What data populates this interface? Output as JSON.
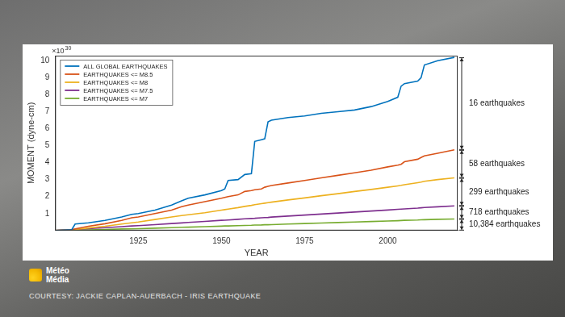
{
  "chart_data": {
    "type": "line",
    "x_label": "YEAR",
    "y_label": "MOMENT (dyne-cm)",
    "y_multiplier": {
      "text": "×10",
      "superscript": "30"
    },
    "x": [
      1900,
      1905,
      1906,
      1910,
      1915,
      1920,
      1923,
      1925,
      1930,
      1935,
      1938,
      1940,
      1945,
      1950,
      1951,
      1952,
      1955,
      1957,
      1959,
      1960,
      1962,
      1963,
      1964,
      1965,
      1970,
      1975,
      1980,
      1985,
      1990,
      1995,
      2000,
      2003,
      2004,
      2005,
      2009,
      2010,
      2011,
      2015,
      2020
    ],
    "series": [
      {
        "name": "ALL GLOBAL EARTHQUAKES",
        "color": "#0072bd",
        "line_style": "solid",
        "values": [
          0,
          0.05,
          0.38,
          0.45,
          0.6,
          0.8,
          0.95,
          1.0,
          1.2,
          1.5,
          1.75,
          1.9,
          2.1,
          2.35,
          2.45,
          2.95,
          3.0,
          3.3,
          3.35,
          5.25,
          5.35,
          5.4,
          6.4,
          6.5,
          6.65,
          6.75,
          6.9,
          7.0,
          7.1,
          7.3,
          7.6,
          7.85,
          8.5,
          8.65,
          8.8,
          9.0,
          9.75,
          10.0,
          10.2
        ]
      },
      {
        "name": "EARTHQUAKES <= M8.5",
        "color": "#d95319",
        "line_style": "solid",
        "values": [
          0,
          0.05,
          0.1,
          0.25,
          0.4,
          0.6,
          0.75,
          0.8,
          1.0,
          1.2,
          1.4,
          1.5,
          1.7,
          1.9,
          1.95,
          2.0,
          2.1,
          2.3,
          2.35,
          2.4,
          2.45,
          2.55,
          2.6,
          2.65,
          2.8,
          2.95,
          3.1,
          3.25,
          3.4,
          3.55,
          3.75,
          3.85,
          3.9,
          4.05,
          4.2,
          4.3,
          4.4,
          4.55,
          4.75
        ]
      },
      {
        "name": "EARTHQUAKES <= M8",
        "color": "#edb120",
        "line_style": "solid",
        "values": [
          0,
          0.03,
          0.05,
          0.15,
          0.25,
          0.38,
          0.45,
          0.5,
          0.65,
          0.8,
          0.88,
          0.93,
          1.05,
          1.2,
          1.23,
          1.26,
          1.35,
          1.42,
          1.48,
          1.52,
          1.58,
          1.61,
          1.64,
          1.67,
          1.8,
          1.92,
          2.05,
          2.17,
          2.3,
          2.42,
          2.55,
          2.63,
          2.66,
          2.7,
          2.82,
          2.85,
          2.9,
          3.0,
          3.1
        ]
      },
      {
        "name": "EARTHQUAKES <= M7.5",
        "color": "#7e2f8e",
        "line_style": "solid",
        "values": [
          0,
          0.05,
          0.06,
          0.11,
          0.17,
          0.23,
          0.27,
          0.29,
          0.35,
          0.41,
          0.45,
          0.48,
          0.54,
          0.6,
          0.61,
          0.62,
          0.66,
          0.69,
          0.71,
          0.72,
          0.75,
          0.76,
          0.77,
          0.79,
          0.85,
          0.91,
          0.97,
          1.03,
          1.09,
          1.15,
          1.21,
          1.25,
          1.26,
          1.27,
          1.32,
          1.34,
          1.36,
          1.4,
          1.45
        ]
      },
      {
        "name": "EARTHQUAKES <= M7",
        "color": "#77ac30",
        "line_style": "solid",
        "values": [
          0,
          0.02,
          0.02,
          0.04,
          0.06,
          0.09,
          0.1,
          0.11,
          0.14,
          0.17,
          0.19,
          0.2,
          0.23,
          0.26,
          0.27,
          0.27,
          0.29,
          0.3,
          0.31,
          0.32,
          0.33,
          0.34,
          0.34,
          0.35,
          0.38,
          0.41,
          0.44,
          0.47,
          0.5,
          0.53,
          0.56,
          0.58,
          0.59,
          0.6,
          0.62,
          0.63,
          0.64,
          0.66,
          0.68
        ]
      }
    ],
    "xlim": [
      1900,
      2021
    ],
    "xticks": [
      1925,
      1950,
      1975,
      2000
    ],
    "ylim": [
      0,
      10.3
    ],
    "yticks": [
      1,
      2,
      3,
      4,
      5,
      6,
      7,
      8,
      9,
      10
    ],
    "grid": false,
    "legend": "upper left",
    "annotations": {
      "brackets": [
        "16 earthquakes",
        "58 earthquakes",
        "299 earthquakes",
        "718 earthquakes",
        "10,384 earthquakes"
      ],
      "logo": [
        "Météo",
        "Média"
      ],
      "credit": "COURTESY: JACKIE CAPLAN-AUERBACH - IRIS EARTHQUAKE"
    }
  }
}
